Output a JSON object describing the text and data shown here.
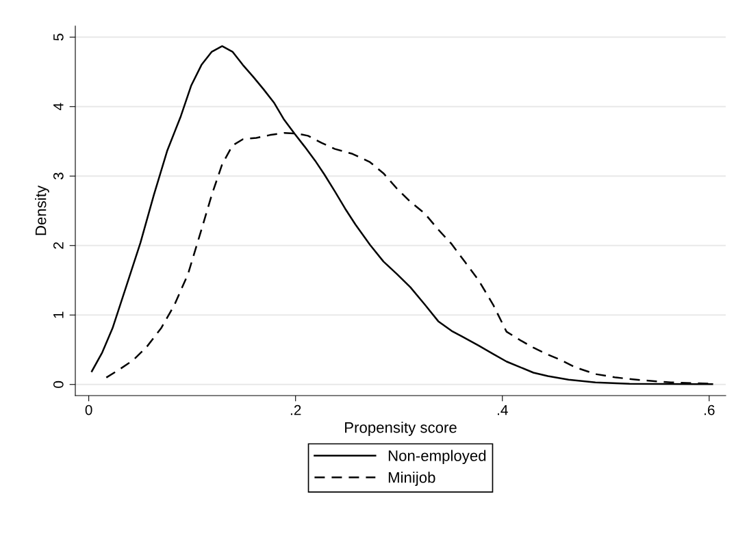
{
  "chart_data": {
    "type": "line",
    "xlabel": "Propensity score",
    "ylabel": "Density",
    "xlim": [
      -0.013,
      0.616
    ],
    "xticks": [
      0,
      {
        "value": 0.2,
        "label": ".2"
      },
      {
        "value": 0.4,
        "label": ".4"
      },
      {
        "value": 0.6,
        "label": ".6"
      }
    ],
    "ylim": [
      -0.16,
      5.16
    ],
    "yticks": [
      0,
      1,
      2,
      3,
      4,
      5
    ],
    "grid": "y",
    "legend": "bottom",
    "series": [
      {
        "name": "Non-employed",
        "color": "#000000",
        "line_style": "solid",
        "x": [
          0.003,
          0.013,
          0.023,
          0.036,
          0.05,
          0.063,
          0.076,
          0.089,
          0.099,
          0.109,
          0.119,
          0.129,
          0.139,
          0.149,
          0.159,
          0.169,
          0.179,
          0.189,
          0.199,
          0.209,
          0.219,
          0.228,
          0.238,
          0.248,
          0.258,
          0.272,
          0.285,
          0.298,
          0.311,
          0.325,
          0.338,
          0.351,
          0.361,
          0.377,
          0.391,
          0.404,
          0.417,
          0.43,
          0.444,
          0.464,
          0.49,
          0.523,
          0.603
        ],
        "values": [
          0.19,
          0.46,
          0.81,
          1.4,
          2.04,
          2.73,
          3.37,
          3.86,
          4.3,
          4.6,
          4.79,
          4.87,
          4.79,
          4.6,
          4.43,
          4.25,
          4.06,
          3.81,
          3.61,
          3.42,
          3.22,
          3.02,
          2.78,
          2.53,
          2.3,
          2.01,
          1.77,
          1.59,
          1.4,
          1.15,
          0.91,
          0.77,
          0.69,
          0.56,
          0.44,
          0.33,
          0.25,
          0.17,
          0.12,
          0.07,
          0.03,
          0.01,
          0.005
        ]
      },
      {
        "name": "Minijob",
        "color": "#000000",
        "line_style": "dashed",
        "x": [
          0.017,
          0.03,
          0.043,
          0.056,
          0.07,
          0.083,
          0.096,
          0.109,
          0.119,
          0.129,
          0.139,
          0.149,
          0.162,
          0.175,
          0.189,
          0.202,
          0.212,
          0.225,
          0.238,
          0.255,
          0.272,
          0.285,
          0.298,
          0.311,
          0.325,
          0.338,
          0.351,
          0.364,
          0.377,
          0.391,
          0.404,
          0.417,
          0.43,
          0.444,
          0.457,
          0.47,
          0.49,
          0.51,
          0.536,
          0.563,
          0.603
        ],
        "values": [
          0.1,
          0.22,
          0.35,
          0.54,
          0.81,
          1.15,
          1.59,
          2.23,
          2.73,
          3.17,
          3.44,
          3.53,
          3.55,
          3.59,
          3.62,
          3.61,
          3.58,
          3.48,
          3.39,
          3.32,
          3.2,
          3.04,
          2.82,
          2.63,
          2.46,
          2.23,
          2.02,
          1.76,
          1.5,
          1.15,
          0.76,
          0.64,
          0.53,
          0.43,
          0.35,
          0.25,
          0.15,
          0.1,
          0.06,
          0.03,
          0.01
        ]
      }
    ]
  }
}
